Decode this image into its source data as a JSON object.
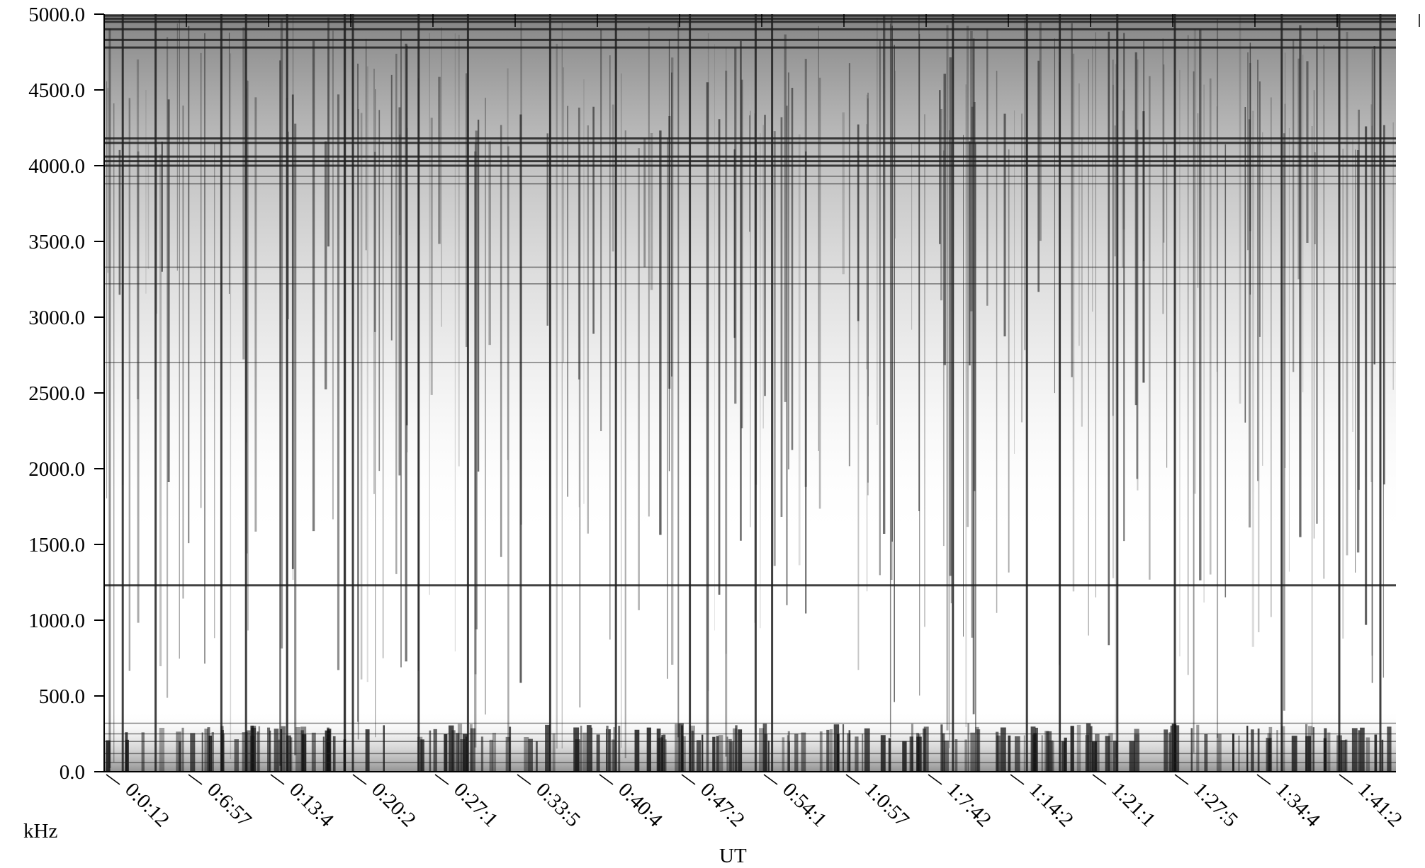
{
  "chart_data": {
    "type": "heatmap",
    "subtype": "spectrogram",
    "colormap": "grayscale",
    "xlabel": "UT",
    "ylabel": "kHz",
    "ylim": [
      0,
      5000
    ],
    "y_ticks": [
      {
        "value": 0,
        "label": "0.0"
      },
      {
        "value": 500,
        "label": "500.0"
      },
      {
        "value": 1000,
        "label": "1000.0"
      },
      {
        "value": 1500,
        "label": "1500.0"
      },
      {
        "value": 2000,
        "label": "2000.0"
      },
      {
        "value": 2500,
        "label": "2500.0"
      },
      {
        "value": 3000,
        "label": "3000.0"
      },
      {
        "value": 3500,
        "label": "3500.0"
      },
      {
        "value": 4000,
        "label": "4000.0"
      },
      {
        "value": 4500,
        "label": "4500.0"
      },
      {
        "value": 5000,
        "label": "5000.0"
      }
    ],
    "x_ticks": [
      "0:0:12",
      "0:6:57",
      "0:13:4",
      "0:20:2",
      "0:27:1",
      "0:33:5",
      "0:40:4",
      "0:47:2",
      "0:54:1",
      "1:0:57",
      "1:7:42",
      "1:14:2",
      "1:21:1",
      "1:27:5",
      "1:34:4",
      "1:41:2"
    ],
    "horizontal_lines_khz": [
      4990,
      4970,
      4950,
      4900,
      4830,
      4780,
      4180,
      4150,
      4060,
      4030,
      4000,
      3930,
      3880,
      3330,
      3220,
      2700,
      1230,
      320,
      250,
      200,
      120,
      60
    ],
    "strong_vertical_line_ticks": [
      0.2,
      0.6,
      1.4,
      1.7,
      2.2,
      2.9,
      3.0,
      3.8,
      4.4,
      5.4,
      6.2,
      7.1,
      7.9,
      8.1,
      10.3,
      11.2,
      11.6,
      12.3,
      13.0,
      14.3,
      15.0,
      15.5
    ]
  }
}
